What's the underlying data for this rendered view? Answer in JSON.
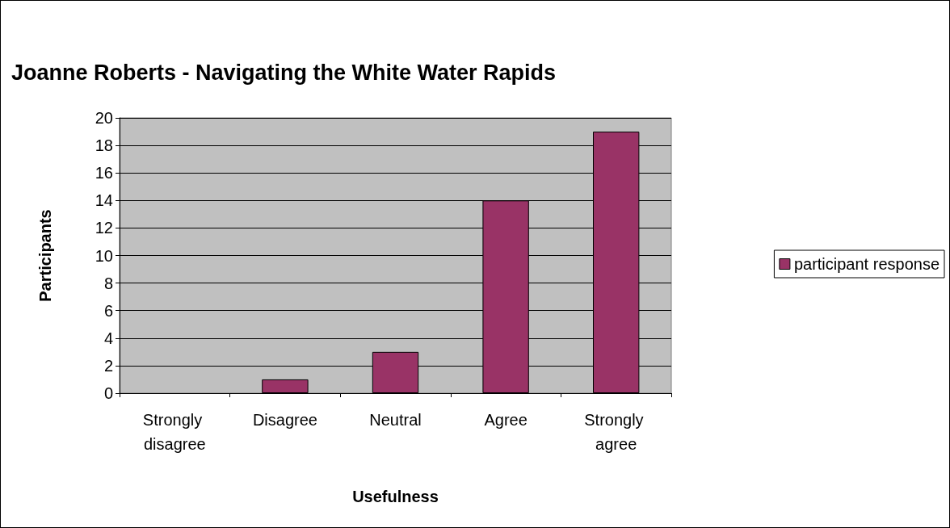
{
  "chart_data": {
    "type": "bar",
    "title": "Joanne Roberts - Navigating the White Water Rapids",
    "xlabel": "Usefulness",
    "ylabel": "Participants",
    "categories": [
      "Strongly disagree",
      "Disagree",
      "Neutral",
      "Agree",
      "Strongly agree"
    ],
    "series": [
      {
        "name": "participant response",
        "color": "#993366",
        "values": [
          0,
          1,
          3,
          14,
          19
        ]
      }
    ],
    "ylim": [
      0,
      20
    ],
    "yticks": [
      0,
      2,
      4,
      6,
      8,
      10,
      12,
      14,
      16,
      18,
      20
    ],
    "grid": "y",
    "legend": "right"
  }
}
